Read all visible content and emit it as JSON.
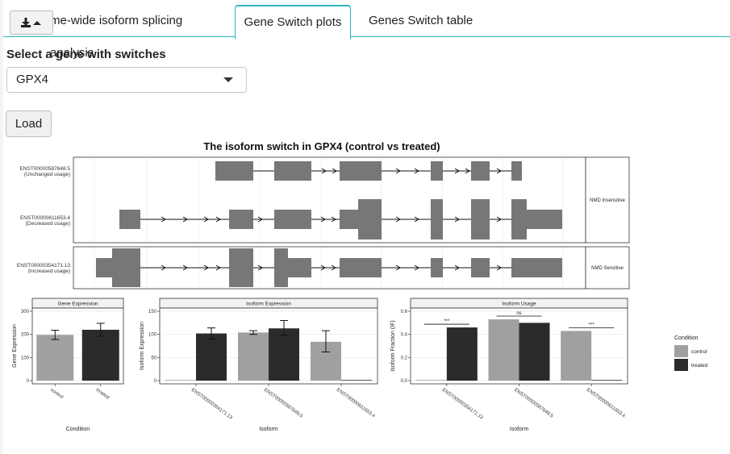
{
  "tabs": [
    {
      "label": "me-wide isoform splicing analysis"
    },
    {
      "label": "Gene Switch plots"
    },
    {
      "label": "Genes Switch table"
    }
  ],
  "download_button": {
    "icon": "download-icon",
    "caret": "caret-up-icon"
  },
  "gene_select": {
    "label": "Select a gene with switches",
    "value": "GPX4"
  },
  "load_button": {
    "label": "Load"
  },
  "switch_plot": {
    "title": "The isoform switch in GPX4 (control vs treated)",
    "isoforms": [
      {
        "id": "ENST00000587648.5",
        "note": "(Unchanged usage)"
      },
      {
        "id": "ENST00000611653.4",
        "note": "(Decreased usage)"
      },
      {
        "id": "ENST00000354171.13",
        "note": "(Increased usage)"
      }
    ],
    "facets": [
      "NMD Insensitive",
      "NMD Sensitive"
    ]
  },
  "colors": {
    "control": "#a0a0a0",
    "treated": "#2b2b2b",
    "exon": "#777777"
  },
  "chart_data": [
    {
      "type": "bar",
      "title": "Gene Expression",
      "xlabel": "Condition",
      "ylabel": "Gene Expression",
      "categories": [
        "control",
        "treated"
      ],
      "series": [
        {
          "name": "control",
          "values": [
            198,
            null
          ]
        },
        {
          "name": "treated",
          "values": [
            null,
            220
          ]
        }
      ],
      "error": [
        [
          178,
          218
        ],
        [
          192,
          248
        ]
      ],
      "ylim": [
        0,
        300
      ],
      "yticks": [
        "0",
        "100",
        "200",
        "300"
      ]
    },
    {
      "type": "bar",
      "title": "Isoform Expression",
      "xlabel": "Isoform",
      "ylabel": "Isoform Expression",
      "categories": [
        "ENST00000354171.13",
        "ENST00000587648.5",
        "ENST00000611653.4"
      ],
      "series": [
        {
          "name": "control",
          "values": [
            0,
            104,
            84
          ]
        },
        {
          "name": "treated",
          "values": [
            102,
            113,
            0
          ]
        }
      ],
      "ylim": [
        0,
        150
      ],
      "yticks": [
        "0",
        "50",
        "100",
        "150"
      ]
    },
    {
      "type": "bar",
      "title": "Isoform Usage",
      "xlabel": "Isoform",
      "ylabel": "Isoform Fraction (IF)",
      "categories": [
        "ENST00000354171.13",
        "ENST00000587648.5",
        "ENST00000611653.4"
      ],
      "series": [
        {
          "name": "control",
          "values": [
            0,
            0.53,
            0.43
          ]
        },
        {
          "name": "treated",
          "values": [
            0.46,
            0.5,
            0
          ]
        }
      ],
      "significance": [
        "***",
        "ns",
        "***"
      ],
      "ylim": [
        0,
        0.6
      ],
      "yticks": [
        "0.0",
        "0.2",
        "0.4",
        "0.6"
      ]
    }
  ],
  "legend": {
    "title": "Condition",
    "items": [
      "control",
      "treated"
    ]
  }
}
